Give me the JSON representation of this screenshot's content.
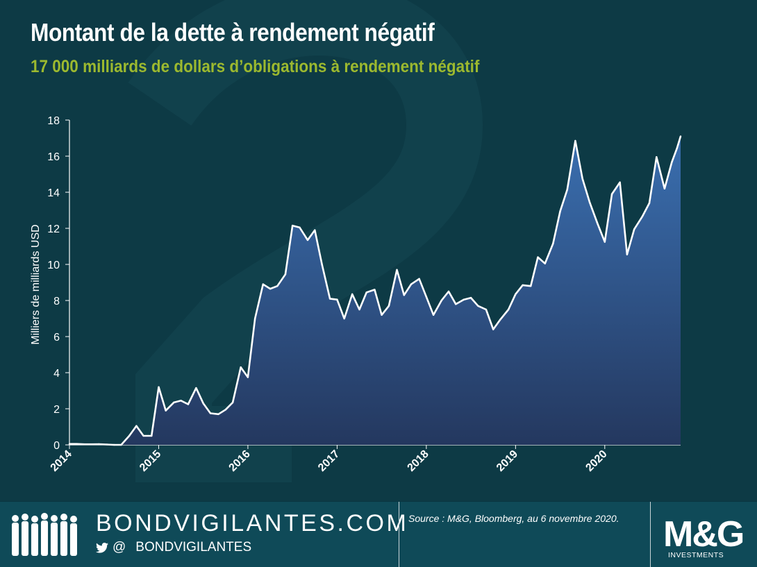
{
  "header": {
    "title": "Montant de la dette à rendement négatif",
    "subtitle": "17 000 milliards de dollars d’obligations à rendement négatif"
  },
  "colors": {
    "background": "#0d3a45",
    "title": "#ffffff",
    "subtitle": "#9cb92f",
    "area_top": "#3a6fb0",
    "area_bottom": "#24385f",
    "line": "#ffffff",
    "footer": "#0f4a58"
  },
  "chart_data": {
    "type": "area",
    "title": "",
    "xlabel": "",
    "ylabel": "Milliers de milliards USD",
    "ylim": [
      0,
      18
    ],
    "y_ticks": [
      0,
      2,
      4,
      6,
      8,
      10,
      12,
      14,
      16,
      18
    ],
    "x_ticks": [
      "2014",
      "2015",
      "2016",
      "2017",
      "2018",
      "2019",
      "2020"
    ],
    "x_tick_values": [
      2014.0,
      2015.0,
      2016.0,
      2017.0,
      2018.0,
      2019.0,
      2020.0
    ],
    "xlim": [
      2014.0,
      2020.85
    ],
    "grid": false,
    "legend": "none",
    "series": [
      {
        "x": [
          2014.0,
          2014.08,
          2014.17,
          2014.25,
          2014.33,
          2014.42,
          2014.5,
          2014.58,
          2014.67,
          2014.75,
          2014.83,
          2014.92,
          2015.0,
          2015.08,
          2015.17,
          2015.25,
          2015.33,
          2015.42,
          2015.5,
          2015.58,
          2015.67,
          2015.75,
          2015.83,
          2015.92,
          2016.0,
          2016.08,
          2016.17,
          2016.25,
          2016.33,
          2016.42,
          2016.5,
          2016.58,
          2016.67,
          2016.75,
          2016.83,
          2016.92,
          2017.0,
          2017.08,
          2017.17,
          2017.25,
          2017.33,
          2017.42,
          2017.5,
          2017.58,
          2017.67,
          2017.75,
          2017.83,
          2017.92,
          2018.0,
          2018.08,
          2018.17,
          2018.25,
          2018.33,
          2018.42,
          2018.5,
          2018.58,
          2018.67,
          2018.75,
          2018.83,
          2018.92,
          2019.0,
          2019.08,
          2019.17,
          2019.25,
          2019.33,
          2019.42,
          2019.5,
          2019.58,
          2019.67,
          2019.75,
          2019.83,
          2019.92,
          2020.0,
          2020.08,
          2020.17,
          2020.25,
          2020.33,
          2020.42,
          2020.5,
          2020.58,
          2020.67,
          2020.75,
          2020.81,
          2020.85
        ],
        "y": [
          0.05,
          0.05,
          0.03,
          0.03,
          0.04,
          0.02,
          0.0,
          0.0,
          0.5,
          1.05,
          0.5,
          0.5,
          3.2,
          1.9,
          2.35,
          2.45,
          2.25,
          3.15,
          2.3,
          1.75,
          1.7,
          1.95,
          2.35,
          4.3,
          3.75,
          7.0,
          8.9,
          8.65,
          8.8,
          9.45,
          12.15,
          12.05,
          11.35,
          11.9,
          10.0,
          8.1,
          8.05,
          7.0,
          8.35,
          7.5,
          8.45,
          8.6,
          7.2,
          7.7,
          9.7,
          8.3,
          8.9,
          9.2,
          8.2,
          7.2,
          8.0,
          8.5,
          7.8,
          8.05,
          8.15,
          7.7,
          7.5,
          6.4,
          6.95,
          7.5,
          8.35,
          8.85,
          8.8,
          10.4,
          10.05,
          11.15,
          12.95,
          14.15,
          16.85,
          14.75,
          13.45,
          12.25,
          11.25,
          13.9,
          14.55,
          10.55,
          11.95,
          12.65,
          13.4,
          15.95,
          14.2,
          15.65,
          16.45,
          17.1
        ]
      }
    ]
  },
  "footer": {
    "brand": "BONDVIGILANTES.COM",
    "social_at": "@",
    "social_handle": "BONDVIGILANTES",
    "twitter_icon": "twitter-bird-icon",
    "people_icon": "people-silhouettes-icon",
    "source": "Source : M&G, Bloomberg, au 6 novembre 2020.",
    "logo_text": "M&G",
    "logo_tagline": "INVESTMENTS"
  }
}
